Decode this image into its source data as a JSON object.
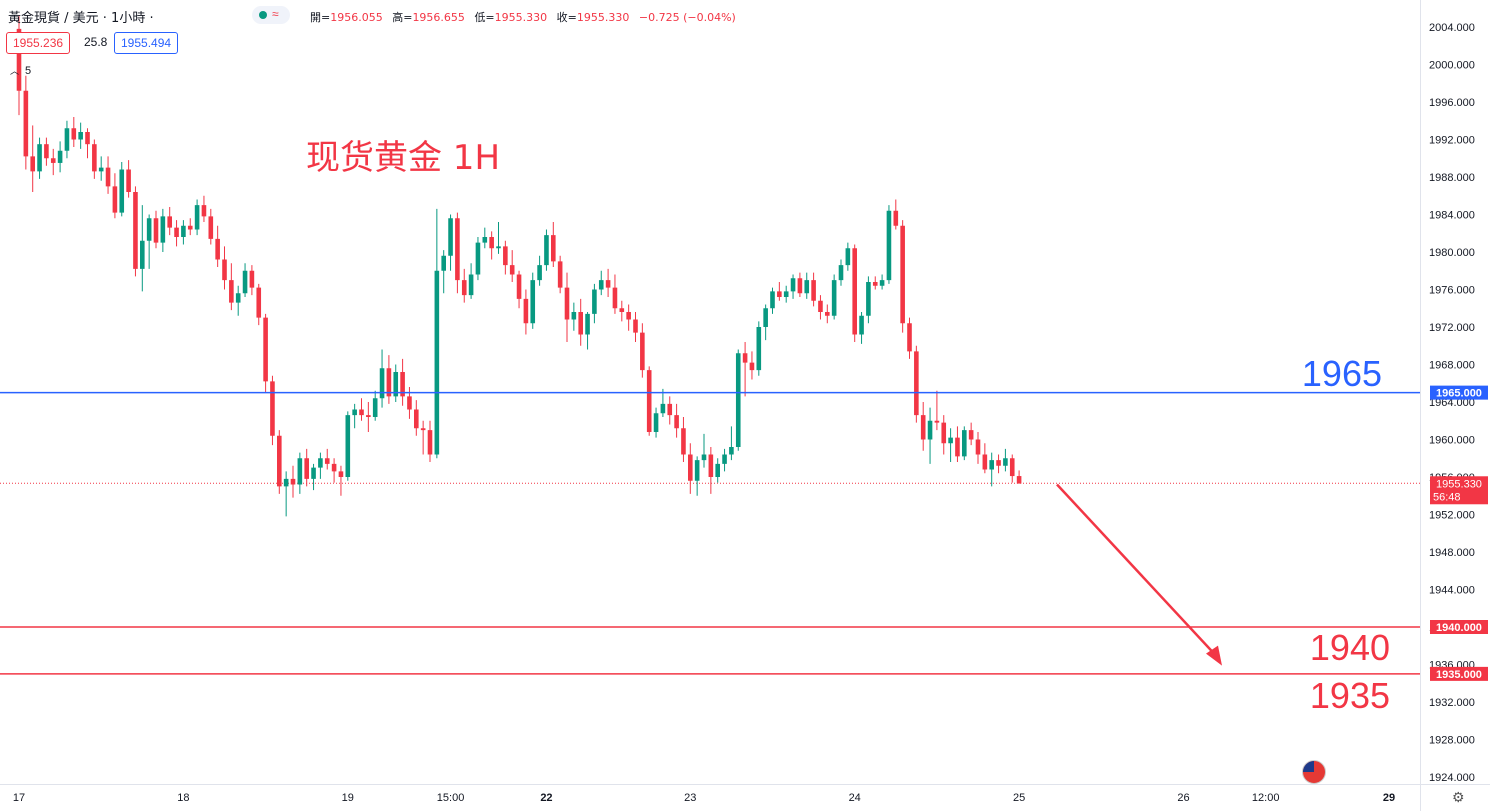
{
  "header": {
    "symbol": "黃金現貨 / 美元 · 1小時 ·",
    "ohlc_labels": [
      "開=",
      "高=",
      "低=",
      "收="
    ],
    "ohlc_values": [
      "1956.055",
      "1956.655",
      "1955.330",
      "1955.330"
    ],
    "change": "−0.725 (−0.04%)",
    "bid": "1955.236",
    "spread": "25.8",
    "ask": "1955.494",
    "indicator_count": "5"
  },
  "annotation": {
    "title": "现货黄金 1H",
    "level_labels": [
      "1965",
      "1940",
      "1935"
    ]
  },
  "colors": {
    "up": "#089981",
    "down": "#f23645",
    "blue_line": "#2962ff",
    "red_line": "#f23645"
  },
  "chart_data": {
    "type": "candlestick",
    "title": "",
    "ylim": [
      1922.5,
      2005.5
    ],
    "y_ticks": [
      "1924.000",
      "1928.000",
      "1932.000",
      "1936.000",
      "1940.000",
      "1944.000",
      "1948.000",
      "1952.000",
      "1956.000",
      "1960.000",
      "1964.000",
      "1968.000",
      "1972.000",
      "1976.000",
      "1980.000",
      "1984.000",
      "1988.000",
      "1992.000",
      "1996.000",
      "2000.000",
      "2004.000"
    ],
    "x_ticks": [
      {
        "label": "17",
        "bar": 0
      },
      {
        "label": "18",
        "bar": 24
      },
      {
        "label": "19",
        "bar": 48
      },
      {
        "label": "15:00",
        "bar": 63
      },
      {
        "label": "22",
        "bar": 77
      },
      {
        "label": "23",
        "bar": 98
      },
      {
        "label": "24",
        "bar": 122
      },
      {
        "label": "25",
        "bar": 146
      },
      {
        "label": "26",
        "bar": 170
      },
      {
        "label": "12:00",
        "bar": 182
      },
      {
        "label": "29",
        "bar": 200
      }
    ],
    "horizontal_lines": [
      {
        "value": 1965.0,
        "label": "1965.000",
        "color": "#2962ff"
      },
      {
        "value": 1940.0,
        "label": "1940.000",
        "color": "#f23645"
      },
      {
        "value": 1935.0,
        "label": "1935.000",
        "color": "#f23645"
      }
    ],
    "last_price": {
      "value": 1955.33,
      "label": "1955.330",
      "countdown": "56:48"
    },
    "arrow": {
      "from": {
        "bar": 160,
        "value": 1955.2
      },
      "to": {
        "bar": 178,
        "value": 1937.8
      }
    },
    "candles": [
      [
        2003.8,
        2005.2,
        1994.6,
        1997.2
      ],
      [
        1997.2,
        1998.8,
        1988.8,
        1990.2
      ],
      [
        1990.2,
        1993.5,
        1986.4,
        1988.6
      ],
      [
        1988.6,
        1992.2,
        1987.8,
        1991.5
      ],
      [
        1991.5,
        1992.2,
        1989.2,
        1990.0
      ],
      [
        1990.0,
        1991.0,
        1988.2,
        1989.5
      ],
      [
        1989.5,
        1991.8,
        1988.5,
        1990.8
      ],
      [
        1990.8,
        1994.0,
        1990.0,
        1993.2
      ],
      [
        1993.2,
        1994.4,
        1991.2,
        1992.0
      ],
      [
        1992.0,
        1993.8,
        1991.0,
        1992.8
      ],
      [
        1992.8,
        1993.2,
        1990.0,
        1991.5
      ],
      [
        1991.5,
        1992.0,
        1987.8,
        1988.6
      ],
      [
        1988.6,
        1990.2,
        1987.6,
        1989.0
      ],
      [
        1989.0,
        1990.2,
        1986.2,
        1987.0
      ],
      [
        1987.0,
        1988.4,
        1983.6,
        1984.2
      ],
      [
        1984.2,
        1989.6,
        1983.8,
        1988.8
      ],
      [
        1988.8,
        1989.8,
        1985.8,
        1986.4
      ],
      [
        1986.4,
        1987.0,
        1977.4,
        1978.2
      ],
      [
        1978.2,
        1985.0,
        1975.8,
        1981.2
      ],
      [
        1981.2,
        1984.0,
        1978.2,
        1983.6
      ],
      [
        1983.6,
        1984.4,
        1980.4,
        1981.0
      ],
      [
        1981.0,
        1984.6,
        1980.0,
        1983.8
      ],
      [
        1983.8,
        1984.8,
        1981.8,
        1982.6
      ],
      [
        1982.6,
        1983.4,
        1980.6,
        1981.6
      ],
      [
        1981.6,
        1983.4,
        1980.8,
        1982.8
      ],
      [
        1982.8,
        1983.6,
        1981.8,
        1982.4
      ],
      [
        1982.4,
        1985.6,
        1981.8,
        1985.0
      ],
      [
        1985.0,
        1986.0,
        1983.2,
        1983.8
      ],
      [
        1983.8,
        1984.6,
        1980.8,
        1981.4
      ],
      [
        1981.4,
        1982.8,
        1978.4,
        1979.2
      ],
      [
        1979.2,
        1980.6,
        1976.0,
        1977.0
      ],
      [
        1977.0,
        1978.8,
        1973.8,
        1974.6
      ],
      [
        1974.6,
        1976.4,
        1973.2,
        1975.6
      ],
      [
        1975.6,
        1978.8,
        1975.2,
        1978.0
      ],
      [
        1978.0,
        1978.6,
        1975.4,
        1976.2
      ],
      [
        1976.2,
        1976.6,
        1972.2,
        1973.0
      ],
      [
        1973.0,
        1973.4,
        1965.0,
        1966.2
      ],
      [
        1966.2,
        1966.8,
        1959.4,
        1960.4
      ],
      [
        1960.4,
        1961.0,
        1954.2,
        1955.0
      ],
      [
        1955.0,
        1956.6,
        1951.8,
        1955.8
      ],
      [
        1955.8,
        1957.2,
        1953.8,
        1955.2
      ],
      [
        1955.2,
        1958.6,
        1954.2,
        1958.0
      ],
      [
        1958.0,
        1959.0,
        1955.0,
        1955.8
      ],
      [
        1955.8,
        1957.4,
        1954.6,
        1957.0
      ],
      [
        1957.0,
        1958.6,
        1955.8,
        1958.0
      ],
      [
        1958.0,
        1959.0,
        1956.8,
        1957.4
      ],
      [
        1957.4,
        1958.0,
        1955.4,
        1956.6
      ],
      [
        1956.6,
        1957.2,
        1954.0,
        1956.0
      ],
      [
        1956.0,
        1963.0,
        1955.6,
        1962.6
      ],
      [
        1962.6,
        1963.8,
        1961.2,
        1963.2
      ],
      [
        1963.2,
        1964.4,
        1962.0,
        1962.6
      ],
      [
        1962.6,
        1964.0,
        1960.8,
        1962.4
      ],
      [
        1962.4,
        1965.2,
        1962.0,
        1964.4
      ],
      [
        1964.4,
        1969.6,
        1963.4,
        1967.6
      ],
      [
        1967.6,
        1969.0,
        1963.8,
        1964.6
      ],
      [
        1964.6,
        1968.0,
        1964.0,
        1967.2
      ],
      [
        1967.2,
        1968.6,
        1963.6,
        1964.6
      ],
      [
        1964.6,
        1965.6,
        1962.2,
        1963.2
      ],
      [
        1963.2,
        1964.2,
        1960.4,
        1961.2
      ],
      [
        1961.2,
        1962.0,
        1958.4,
        1961.0
      ],
      [
        1961.0,
        1962.0,
        1957.6,
        1958.4
      ],
      [
        1958.4,
        1984.6,
        1958.0,
        1978.0
      ],
      [
        1978.0,
        1980.2,
        1975.6,
        1979.6
      ],
      [
        1979.6,
        1984.0,
        1978.0,
        1983.6
      ],
      [
        1983.6,
        1984.2,
        1975.6,
        1977.0
      ],
      [
        1977.0,
        1978.2,
        1974.6,
        1975.4
      ],
      [
        1975.4,
        1978.8,
        1975.0,
        1977.6
      ],
      [
        1977.6,
        1981.6,
        1977.0,
        1981.0
      ],
      [
        1981.0,
        1982.6,
        1980.4,
        1981.6
      ],
      [
        1981.6,
        1982.2,
        1979.2,
        1980.4
      ],
      [
        1980.4,
        1983.2,
        1979.8,
        1980.6
      ],
      [
        1980.6,
        1981.2,
        1977.6,
        1978.6
      ],
      [
        1978.6,
        1980.2,
        1976.8,
        1977.6
      ],
      [
        1977.6,
        1978.0,
        1974.0,
        1975.0
      ],
      [
        1975.0,
        1976.0,
        1971.2,
        1972.4
      ],
      [
        1972.4,
        1977.8,
        1971.8,
        1977.0
      ],
      [
        1977.0,
        1979.6,
        1976.4,
        1978.6
      ],
      [
        1978.6,
        1982.4,
        1978.0,
        1981.8
      ],
      [
        1981.8,
        1983.2,
        1978.4,
        1979.0
      ],
      [
        1979.0,
        1979.6,
        1975.6,
        1976.2
      ],
      [
        1976.2,
        1977.8,
        1970.4,
        1972.8
      ],
      [
        1972.8,
        1974.6,
        1971.6,
        1973.6
      ],
      [
        1973.6,
        1975.0,
        1970.0,
        1971.2
      ],
      [
        1971.2,
        1973.6,
        1969.6,
        1973.4
      ],
      [
        1973.4,
        1976.6,
        1972.4,
        1976.0
      ],
      [
        1976.0,
        1978.0,
        1975.4,
        1977.0
      ],
      [
        1977.0,
        1978.2,
        1975.2,
        1976.2
      ],
      [
        1976.2,
        1977.6,
        1973.4,
        1974.0
      ],
      [
        1974.0,
        1974.8,
        1972.6,
        1973.6
      ],
      [
        1973.6,
        1974.4,
        1971.6,
        1972.8
      ],
      [
        1972.8,
        1973.6,
        1970.4,
        1971.4
      ],
      [
        1971.4,
        1972.4,
        1966.6,
        1967.4
      ],
      [
        1967.4,
        1967.8,
        1960.4,
        1960.8
      ],
      [
        1960.8,
        1963.4,
        1960.2,
        1962.8
      ],
      [
        1962.8,
        1965.4,
        1962.4,
        1963.8
      ],
      [
        1963.8,
        1964.6,
        1961.6,
        1962.6
      ],
      [
        1962.6,
        1963.8,
        1960.2,
        1961.2
      ],
      [
        1961.2,
        1962.4,
        1957.6,
        1958.4
      ],
      [
        1958.4,
        1959.6,
        1954.2,
        1955.6
      ],
      [
        1955.6,
        1958.2,
        1954.0,
        1957.8
      ],
      [
        1957.8,
        1960.6,
        1957.0,
        1958.4
      ],
      [
        1958.4,
        1959.2,
        1954.2,
        1956.0
      ],
      [
        1956.0,
        1958.0,
        1955.4,
        1957.4
      ],
      [
        1957.4,
        1959.0,
        1956.6,
        1958.4
      ],
      [
        1958.4,
        1961.4,
        1957.8,
        1959.2
      ],
      [
        1959.2,
        1969.6,
        1958.8,
        1969.2
      ],
      [
        1969.2,
        1970.4,
        1964.6,
        1968.2
      ],
      [
        1968.2,
        1969.4,
        1966.4,
        1967.4
      ],
      [
        1967.4,
        1972.6,
        1966.8,
        1972.0
      ],
      [
        1972.0,
        1974.4,
        1970.6,
        1974.0
      ],
      [
        1974.0,
        1976.2,
        1973.4,
        1975.8
      ],
      [
        1975.8,
        1976.8,
        1974.8,
        1975.2
      ],
      [
        1975.2,
        1976.4,
        1974.6,
        1975.8
      ],
      [
        1975.8,
        1977.6,
        1975.0,
        1977.2
      ],
      [
        1977.2,
        1977.8,
        1975.2,
        1975.6
      ],
      [
        1975.6,
        1977.8,
        1975.0,
        1977.0
      ],
      [
        1977.0,
        1977.8,
        1974.2,
        1974.8
      ],
      [
        1974.8,
        1975.4,
        1972.8,
        1973.6
      ],
      [
        1973.6,
        1974.4,
        1972.4,
        1973.2
      ],
      [
        1973.2,
        1977.6,
        1972.8,
        1977.0
      ],
      [
        1977.0,
        1979.2,
        1976.4,
        1978.6
      ],
      [
        1978.6,
        1981.0,
        1978.0,
        1980.4
      ],
      [
        1980.4,
        1980.8,
        1970.4,
        1971.2
      ],
      [
        1971.2,
        1973.6,
        1970.2,
        1973.2
      ],
      [
        1973.2,
        1977.4,
        1972.4,
        1976.8
      ],
      [
        1976.8,
        1977.4,
        1976.0,
        1976.4
      ],
      [
        1976.4,
        1977.6,
        1976.0,
        1977.0
      ],
      [
        1977.0,
        1985.0,
        1976.6,
        1984.4
      ],
      [
        1984.4,
        1985.6,
        1982.4,
        1982.8
      ],
      [
        1982.8,
        1983.4,
        1971.4,
        1972.4
      ],
      [
        1972.4,
        1973.0,
        1968.6,
        1969.4
      ],
      [
        1969.4,
        1970.0,
        1961.8,
        1962.6
      ],
      [
        1962.6,
        1964.0,
        1958.8,
        1960.0
      ],
      [
        1960.0,
        1963.4,
        1957.4,
        1962.0
      ],
      [
        1962.0,
        1965.2,
        1961.0,
        1961.8
      ],
      [
        1961.8,
        1962.6,
        1958.4,
        1959.6
      ],
      [
        1959.6,
        1961.2,
        1957.6,
        1960.2
      ],
      [
        1960.2,
        1961.4,
        1957.6,
        1958.2
      ],
      [
        1958.2,
        1961.4,
        1957.8,
        1961.0
      ],
      [
        1961.0,
        1961.8,
        1959.4,
        1960.0
      ],
      [
        1960.0,
        1960.8,
        1957.4,
        1958.4
      ],
      [
        1958.4,
        1959.6,
        1956.4,
        1956.8
      ],
      [
        1956.8,
        1958.6,
        1955.0,
        1957.8
      ],
      [
        1957.8,
        1958.4,
        1956.4,
        1957.2
      ],
      [
        1957.2,
        1959.0,
        1956.6,
        1958.0
      ],
      [
        1958.0,
        1958.4,
        1955.4,
        1956.1
      ],
      [
        1956.1,
        1956.7,
        1955.3,
        1955.3
      ]
    ]
  }
}
